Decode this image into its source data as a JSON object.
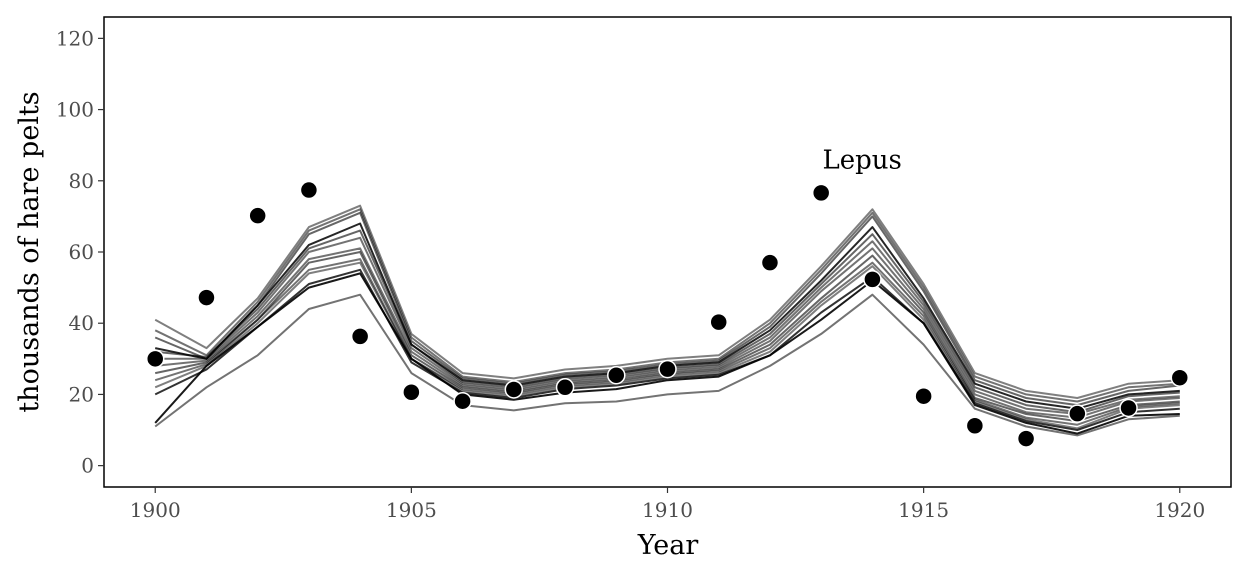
{
  "chart_data": {
    "type": "line",
    "xlabel": "Year",
    "ylabel": "thousands of hare pelts",
    "annotation": "Lepus",
    "annotation_pos": {
      "x": 1913.8,
      "y": 83.5
    },
    "xlim": [
      1899,
      1921
    ],
    "ylim": [
      -6,
      126
    ],
    "x_ticks": [
      1900,
      1905,
      1910,
      1915,
      1920
    ],
    "y_ticks": [
      0,
      20,
      40,
      60,
      80,
      100,
      120
    ],
    "grid": false,
    "colors": {
      "observed": "#000000",
      "simulations": "#000000",
      "point_outline": "#ffffff",
      "frame": "#000000"
    },
    "observed": {
      "name": "",
      "x": [
        1900,
        1901,
        1902,
        1903,
        1904,
        1905,
        1906,
        1907,
        1908,
        1909,
        1910,
        1911,
        1912,
        1913,
        1914,
        1915,
        1916,
        1917,
        1918,
        1919,
        1920
      ],
      "y": [
        30,
        47.2,
        70.2,
        77.4,
        36.3,
        20.6,
        18.1,
        21.4,
        22,
        25.4,
        27.1,
        40.3,
        57,
        76.6,
        52.3,
        19.5,
        11.2,
        7.6,
        14.6,
        16.2,
        24.7
      ]
    },
    "simulations": [
      {
        "x": [
          1900,
          1901,
          1902,
          1903,
          1904,
          1905,
          1906,
          1907,
          1908,
          1909,
          1910,
          1911,
          1912,
          1913,
          1914,
          1915,
          1916,
          1917,
          1918,
          1919,
          1920
        ],
        "y": [
          41,
          33,
          47,
          67,
          73,
          37,
          26,
          24.5,
          27,
          28,
          30,
          31,
          41,
          56,
          72,
          51,
          26,
          21,
          19,
          23,
          24
        ],
        "opacity": 0.5
      },
      {
        "x": [
          1900,
          1901,
          1902,
          1903,
          1904,
          1905,
          1906,
          1907,
          1908,
          1909,
          1910,
          1911,
          1912,
          1913,
          1914,
          1915,
          1916,
          1917,
          1918,
          1919,
          1920
        ],
        "y": [
          38,
          31,
          46,
          66,
          72,
          36,
          25,
          23.5,
          26,
          27,
          29,
          30,
          40,
          55,
          71,
          50,
          25,
          20,
          18,
          22,
          23
        ],
        "opacity": 0.55
      },
      {
        "x": [
          1900,
          1901,
          1902,
          1903,
          1904,
          1905,
          1906,
          1907,
          1908,
          1909,
          1910,
          1911,
          1912,
          1913,
          1914,
          1915,
          1916,
          1917,
          1918,
          1919,
          1920
        ],
        "y": [
          36,
          30,
          45,
          65,
          71,
          35,
          24.5,
          23,
          25.5,
          26.5,
          28.5,
          29.5,
          39,
          54,
          70,
          49,
          24,
          19,
          17,
          21,
          22.5
        ],
        "opacity": 0.6
      },
      {
        "x": [
          1900,
          1901,
          1902,
          1903,
          1904,
          1905,
          1906,
          1907,
          1908,
          1909,
          1910,
          1911,
          1912,
          1913,
          1914,
          1915,
          1916,
          1917,
          1918,
          1919,
          1920
        ],
        "y": [
          33,
          30,
          45,
          62,
          68,
          34,
          24,
          22.5,
          25,
          26,
          28,
          29,
          38,
          52,
          67,
          47,
          23,
          18,
          16,
          20,
          21
        ],
        "opacity": 0.85
      },
      {
        "x": [
          1900,
          1901,
          1902,
          1903,
          1904,
          1905,
          1906,
          1907,
          1908,
          1909,
          1910,
          1911,
          1912,
          1913,
          1914,
          1915,
          1916,
          1917,
          1918,
          1919,
          1920
        ],
        "y": [
          32,
          30.5,
          44,
          61,
          66,
          34,
          23.5,
          22,
          24.5,
          25.5,
          27.5,
          28.5,
          37,
          51,
          65,
          46,
          22,
          17,
          15,
          19.5,
          20.5
        ],
        "opacity": 0.6
      },
      {
        "x": [
          1900,
          1901,
          1902,
          1903,
          1904,
          1905,
          1906,
          1907,
          1908,
          1909,
          1910,
          1911,
          1912,
          1913,
          1914,
          1915,
          1916,
          1917,
          1918,
          1919,
          1920
        ],
        "y": [
          30,
          30,
          43,
          60,
          64,
          33,
          23,
          21.5,
          24,
          25,
          27,
          28,
          36,
          50,
          63,
          45,
          21,
          16,
          14.5,
          18.5,
          19.5
        ],
        "opacity": 0.55
      },
      {
        "x": [
          1900,
          1901,
          1902,
          1903,
          1904,
          1905,
          1906,
          1907,
          1908,
          1909,
          1910,
          1911,
          1912,
          1913,
          1914,
          1915,
          1916,
          1917,
          1918,
          1919,
          1920
        ],
        "y": [
          28,
          29.5,
          42,
          58,
          61,
          32,
          22.5,
          21,
          23.5,
          24.5,
          26.5,
          27.5,
          35,
          49,
          61,
          44,
          20,
          15,
          13.5,
          18,
          19
        ],
        "opacity": 0.55
      },
      {
        "x": [
          1900,
          1901,
          1902,
          1903,
          1904,
          1905,
          1906,
          1907,
          1908,
          1909,
          1910,
          1911,
          1912,
          1913,
          1914,
          1915,
          1916,
          1917,
          1918,
          1919,
          1920
        ],
        "y": [
          26,
          29,
          41,
          57,
          60,
          31,
          22,
          20.5,
          23,
          24,
          26,
          27,
          34,
          47,
          59,
          43,
          19,
          14.5,
          12.5,
          17,
          18
        ],
        "opacity": 0.6
      },
      {
        "x": [
          1900,
          1901,
          1902,
          1903,
          1904,
          1905,
          1906,
          1907,
          1908,
          1909,
          1910,
          1911,
          1912,
          1913,
          1914,
          1915,
          1916,
          1917,
          1918,
          1919,
          1920
        ],
        "y": [
          24,
          28.5,
          41,
          55,
          58,
          30,
          21.5,
          20,
          22.5,
          23.5,
          25.5,
          26.5,
          33,
          46,
          57,
          42,
          18.5,
          13.5,
          11.5,
          16.5,
          17.5
        ],
        "opacity": 0.55
      },
      {
        "x": [
          1900,
          1901,
          1902,
          1903,
          1904,
          1905,
          1906,
          1907,
          1908,
          1909,
          1910,
          1911,
          1912,
          1913,
          1914,
          1915,
          1916,
          1917,
          1918,
          1919,
          1920
        ],
        "y": [
          22,
          28,
          40,
          54,
          57,
          30,
          21,
          19.5,
          22,
          23,
          25,
          26,
          32,
          45,
          56,
          41,
          18,
          13,
          10.5,
          16,
          17
        ],
        "opacity": 0.5
      },
      {
        "x": [
          1900,
          1901,
          1902,
          1903,
          1904,
          1905,
          1906,
          1907,
          1908,
          1909,
          1910,
          1911,
          1912,
          1913,
          1914,
          1915,
          1916,
          1917,
          1918,
          1919,
          1920
        ],
        "y": [
          20,
          27,
          39,
          51,
          55,
          29,
          20.5,
          19,
          21.5,
          22.5,
          24.5,
          25.5,
          31,
          43,
          53,
          40,
          17.5,
          12.5,
          10,
          15,
          16
        ],
        "opacity": 0.8
      },
      {
        "x": [
          1900,
          1901,
          1902,
          1903,
          1904,
          1905,
          1906,
          1907,
          1908,
          1909,
          1910,
          1911,
          1912,
          1913,
          1914,
          1915,
          1916,
          1917,
          1918,
          1919,
          1920
        ],
        "y": [
          12,
          28,
          39,
          50,
          54,
          30,
          20,
          18.5,
          20.5,
          21.5,
          24,
          25,
          31,
          41,
          52,
          40,
          17,
          12,
          9,
          14,
          14.5
        ],
        "opacity": 0.9
      },
      {
        "x": [
          1900,
          1901,
          1902,
          1903,
          1904,
          1905,
          1906,
          1907,
          1908,
          1909,
          1910,
          1911,
          1912,
          1913,
          1914,
          1915,
          1916,
          1917,
          1918,
          1919,
          1920
        ],
        "y": [
          11,
          22,
          31,
          44,
          48,
          26,
          17,
          15.5,
          17.5,
          18,
          20,
          21,
          28,
          37,
          48,
          34,
          16,
          11,
          8.5,
          13,
          14
        ],
        "opacity": 0.55
      }
    ]
  }
}
